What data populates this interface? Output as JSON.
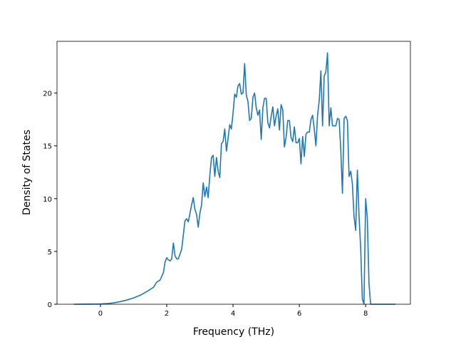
{
  "chart_data": {
    "type": "line",
    "xlabel": "Frequency (THz)",
    "ylabel": "Density of States",
    "xlim": [
      -1.31,
      9.35
    ],
    "ylim": [
      0,
      24.9
    ],
    "xticks": [
      0,
      2,
      4,
      6,
      8
    ],
    "yticks": [
      0,
      5,
      10,
      15,
      20
    ],
    "x": [
      -0.8,
      0,
      0.2,
      0.4,
      0.6,
      0.8,
      1.0,
      1.2,
      1.4,
      1.6,
      1.7,
      1.8,
      1.9,
      1.95,
      2.0,
      2.05,
      2.1,
      2.15,
      2.2,
      2.25,
      2.3,
      2.35,
      2.45,
      2.55,
      2.6,
      2.65,
      2.75,
      2.8,
      2.85,
      2.9,
      2.95,
      3.0,
      3.05,
      3.1,
      3.15,
      3.2,
      3.25,
      3.3,
      3.35,
      3.4,
      3.45,
      3.5,
      3.55,
      3.6,
      3.65,
      3.7,
      3.75,
      3.8,
      3.85,
      3.9,
      3.95,
      4.0,
      4.05,
      4.1,
      4.15,
      4.2,
      4.25,
      4.3,
      4.35,
      4.4,
      4.45,
      4.5,
      4.55,
      4.6,
      4.65,
      4.7,
      4.75,
      4.8,
      4.85,
      4.9,
      4.95,
      5.0,
      5.05,
      5.1,
      5.15,
      5.2,
      5.25,
      5.3,
      5.35,
      5.4,
      5.45,
      5.5,
      5.55,
      5.6,
      5.65,
      5.7,
      5.75,
      5.8,
      5.85,
      5.9,
      5.95,
      6.0,
      6.05,
      6.1,
      6.15,
      6.2,
      6.25,
      6.3,
      6.35,
      6.4,
      6.45,
      6.5,
      6.55,
      6.6,
      6.65,
      6.7,
      6.75,
      6.8,
      6.85,
      6.9,
      6.95,
      7.0,
      7.05,
      7.1,
      7.15,
      7.2,
      7.25,
      7.3,
      7.35,
      7.4,
      7.45,
      7.5,
      7.55,
      7.6,
      7.65,
      7.7,
      7.75,
      7.8,
      7.85,
      7.9,
      7.95,
      8.0,
      8.05,
      8.1,
      8.15,
      8.9
    ],
    "series": [
      {
        "color": "#1f77b4",
        "values": [
          0,
          0.02,
          0.06,
          0.13,
          0.25,
          0.4,
          0.6,
          0.85,
          1.2,
          1.6,
          2.1,
          2.3,
          3.0,
          4.0,
          4.4,
          4.2,
          4.1,
          4.3,
          5.8,
          4.6,
          4.3,
          4.3,
          5.2,
          7.9,
          8.1,
          7.8,
          9.4,
          10.1,
          9.0,
          8.5,
          7.3,
          8.6,
          9.4,
          11.5,
          10.2,
          11.1,
          10.1,
          12.2,
          13.9,
          14.1,
          12.1,
          13.9,
          12.6,
          12.0,
          15.2,
          15.4,
          16.6,
          14.5,
          15.7,
          17.0,
          16.6,
          18.1,
          19.9,
          19.6,
          20.7,
          20.9,
          19.9,
          20.0,
          22.8,
          19.8,
          19.2,
          17.4,
          17.6,
          19.6,
          20.0,
          18.6,
          17.9,
          18.4,
          15.6,
          18.6,
          19.5,
          19.5,
          17.2,
          16.7,
          17.8,
          18.7,
          16.9,
          17.8,
          18.5,
          16.5,
          18.9,
          18.4,
          14.9,
          15.8,
          17.4,
          17.4,
          15.8,
          15.4,
          16.8,
          15.3,
          15.3,
          15.7,
          13.3,
          15.9,
          14.0,
          16.1,
          16.3,
          16.3,
          17.5,
          17.9,
          16.6,
          15.0,
          17.9,
          19.3,
          22.1,
          16.9,
          21.6,
          22.0,
          23.8,
          16.9,
          18.6,
          16.9,
          16.9,
          16.9,
          17.6,
          17.5,
          14.6,
          10.5,
          17.6,
          17.8,
          17.4,
          12.1,
          12.6,
          11.4,
          8.3,
          7.0,
          12.7,
          8.4,
          5.3,
          0.5,
          0,
          10.0,
          8.2,
          2.0,
          0,
          0
        ]
      }
    ]
  }
}
